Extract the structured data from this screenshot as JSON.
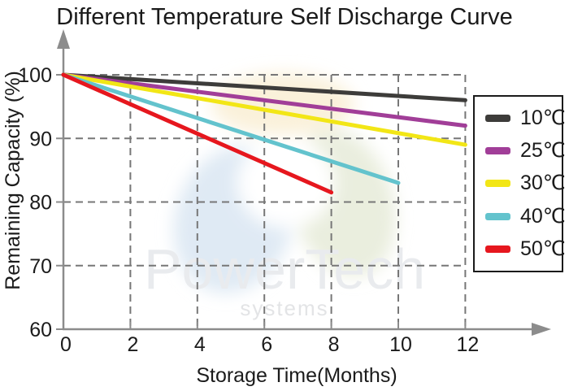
{
  "title": "Different Temperature Self Discharge Curve",
  "watermark": {
    "brand": "PowerTech",
    "sub": "systems"
  },
  "chart_data": {
    "type": "line",
    "title": "Different Temperature Self Discharge Curve",
    "xlabel": "Storage Time(Months)",
    "ylabel": "Remaining Capacity (%)",
    "xlim": [
      0,
      12
    ],
    "ylim": [
      60,
      100
    ],
    "x_ticks": [
      0,
      2,
      4,
      6,
      8,
      10,
      12
    ],
    "y_ticks": [
      100,
      90,
      80,
      70,
      60
    ],
    "grid": "dashed",
    "legend_position": "right",
    "series": [
      {
        "name": "10℃",
        "color": "#3d3c3a",
        "points": [
          [
            0,
            100
          ],
          [
            12,
            96
          ]
        ]
      },
      {
        "name": "25℃",
        "color": "#a13e98",
        "points": [
          [
            0,
            100
          ],
          [
            12,
            92
          ]
        ]
      },
      {
        "name": "30℃",
        "color": "#f2e616",
        "points": [
          [
            0,
            100
          ],
          [
            12,
            89
          ]
        ]
      },
      {
        "name": "40℃",
        "color": "#63c3cd",
        "points": [
          [
            0,
            100
          ],
          [
            10,
            83
          ]
        ]
      },
      {
        "name": "50℃",
        "color": "#e6171e",
        "points": [
          [
            0,
            100
          ],
          [
            8,
            81.5
          ]
        ]
      }
    ],
    "colors": {
      "axis": "#8c8c8c",
      "grid": "#777777",
      "text": "#1b1b1b",
      "watermark_text": "#e9ebee",
      "logo_yellow": "#faf0d6",
      "logo_blue": "#dce8f3",
      "logo_green": "#e8ecda"
    }
  }
}
